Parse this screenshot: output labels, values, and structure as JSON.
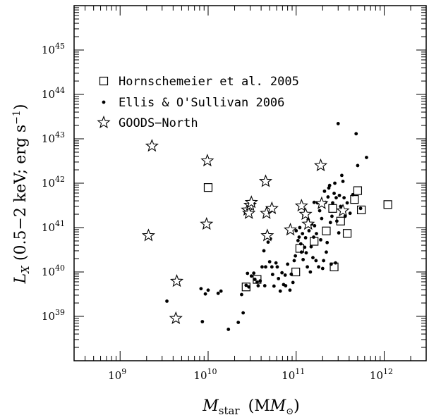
{
  "chart_data": {
    "type": "scatter",
    "xscale": "log",
    "yscale": "log",
    "xlim": [
      300000000.0,
      3000000000000.0
    ],
    "ylim": [
      1e+38,
      1e+46
    ],
    "xlabel": {
      "main": "M",
      "sub": "star",
      "unit": "(M",
      "unit_sub": "⊙",
      "unit_close": ")"
    },
    "ylabel": {
      "main": "L",
      "sub": "X",
      "text": " (0.5−2 keV; erg s",
      "sup": "−1",
      "close": ")"
    },
    "x_ticks": [
      {
        "value": 1000000000.0,
        "base": "10",
        "exp": "9"
      },
      {
        "value": 10000000000.0,
        "base": "10",
        "exp": "10"
      },
      {
        "value": 100000000000.0,
        "base": "10",
        "exp": "11"
      },
      {
        "value": 1000000000000.0,
        "base": "10",
        "exp": "12"
      }
    ],
    "y_ticks": [
      {
        "value": 1e+39,
        "base": "10",
        "exp": "39"
      },
      {
        "value": 1e+40,
        "base": "10",
        "exp": "40"
      },
      {
        "value": 1e+41,
        "base": "10",
        "exp": "41"
      },
      {
        "value": 1e+42,
        "base": "10",
        "exp": "42"
      },
      {
        "value": 1e+43,
        "base": "10",
        "exp": "43"
      },
      {
        "value": 1e+44,
        "base": "10",
        "exp": "44"
      },
      {
        "value": 1e+45,
        "base": "10",
        "exp": "45"
      }
    ],
    "legend": {
      "placement": "top-left",
      "entries": [
        {
          "label": "Hornschemeier et al. 2005",
          "marker": "open-square"
        },
        {
          "label": "Ellis & O'Sullivan 2006",
          "marker": "filled-circle"
        },
        {
          "label": "GOODS−North",
          "marker": "open-star"
        }
      ]
    },
    "series": [
      {
        "name": "Hornschemeier et al. 2005",
        "marker": "open-square",
        "points": [
          [
            10000000000.0,
            8e+41
          ],
          [
            27000000000.0,
            4.6e+39
          ],
          [
            36000000000.0,
            6.8e+39
          ],
          [
            99000000000.0,
            1e+40
          ],
          [
            110000000000.0,
            3.4e+40
          ],
          [
            160000000000.0,
            4.9e+40
          ],
          [
            220000000000.0,
            8.4e+40
          ],
          [
            260000000000.0,
            2.7e+41
          ],
          [
            270000000000.0,
            1.3e+40
          ],
          [
            320000000000.0,
            1.4e+41
          ],
          [
            380000000000.0,
            7.4e+40
          ],
          [
            460000000000.0,
            4.3e+41
          ],
          [
            500000000000.0,
            6.8e+41
          ],
          [
            550000000000.0,
            2.5e+41
          ],
          [
            1100000000000.0,
            3.3e+41
          ]
        ]
      },
      {
        "name": "Ellis & O'Sullivan 2006",
        "marker": "filled-circle",
        "points": [
          [
            3400000000.0,
            2.2e+39
          ],
          [
            8300000000.0,
            4.2e+39
          ],
          [
            8600000000.0,
            7.6e+38
          ],
          [
            9300000000.0,
            3.2e+39
          ],
          [
            10000000000.0,
            3.9e+39
          ],
          [
            13000000000.0,
            3.3e+39
          ],
          [
            14000000000.0,
            3.7e+39
          ],
          [
            17000000000.0,
            5.1e+38
          ],
          [
            22000000000.0,
            7.3e+38
          ],
          [
            24000000000.0,
            3.1e+39
          ],
          [
            25000000000.0,
            1.2e+39
          ],
          [
            27000000000.0,
            5e+39
          ],
          [
            28000000000.0,
            9.3e+39
          ],
          [
            29000000000.0,
            4.6e+39
          ],
          [
            31000000000.0,
            8.1e+39
          ],
          [
            33000000000.0,
            9.4e+39
          ],
          [
            34000000000.0,
            6.8e+39
          ],
          [
            36000000000.0,
            5.9e+39
          ],
          [
            37000000000.0,
            4.9e+39
          ],
          [
            39000000000.0,
            6.3e+39
          ],
          [
            41000000000.0,
            1.3e+40
          ],
          [
            43000000000.0,
            3e+40
          ],
          [
            44000000000.0,
            4.9e+39
          ],
          [
            45000000000.0,
            1.3e+40
          ],
          [
            46000000000.0,
            6.9e+40
          ],
          [
            48000000000.0,
            4.7e+40
          ],
          [
            50000000000.0,
            1.7e+40
          ],
          [
            51000000000.0,
            5.6e+40
          ],
          [
            53000000000.0,
            1.3e+40
          ],
          [
            54000000000.0,
            8.8e+39
          ],
          [
            56000000000.0,
            4.8e+39
          ],
          [
            59000000000.0,
            1.6e+40
          ],
          [
            61000000000.0,
            1.3e+40
          ],
          [
            63000000000.0,
            7.1e+39
          ],
          [
            66000000000.0,
            3.7e+39
          ],
          [
            69000000000.0,
            9.6e+39
          ],
          [
            72000000000.0,
            5.2e+39
          ],
          [
            75000000000.0,
            8.5e+39
          ],
          [
            76000000000.0,
            4.9e+39
          ],
          [
            80000000000.0,
            1.5e+40
          ],
          [
            85000000000.0,
            3.9e+39
          ],
          [
            88000000000.0,
            8.9e+39
          ],
          [
            92000000000.0,
            5.8e+39
          ],
          [
            95000000000.0,
            1.8e+40
          ],
          [
            98000000000.0,
            2.3e+40
          ],
          [
            100000000000.0,
            8.5e+40
          ],
          [
            105000000000.0,
            5.1e+40
          ],
          [
            108000000000.0,
            6.1e+40
          ],
          [
            110000000000.0,
            1e+41
          ],
          [
            113000000000.0,
            4.3e+40
          ],
          [
            115000000000.0,
            2.8e+40
          ],
          [
            118000000000.0,
            7.3e+40
          ],
          [
            120000000000.0,
            1.9e+40
          ],
          [
            122000000000.0,
            1.8e+41
          ],
          [
            125000000000.0,
            3.6e+40
          ],
          [
            128000000000.0,
            5.9e+40
          ],
          [
            130000000000.0,
            2.7e+40
          ],
          [
            134000000000.0,
            1.3e+40
          ],
          [
            137000000000.0,
            1.5e+41
          ],
          [
            140000000000.0,
            8.5e+40
          ],
          [
            145000000000.0,
            1e+40
          ],
          [
            148000000000.0,
            3.7e+40
          ],
          [
            150000000000.0,
            1.2e+41
          ],
          [
            155000000000.0,
            2.1e+40
          ],
          [
            158000000000.0,
            6.1e+40
          ],
          [
            160000000000.0,
            3.7e+41
          ],
          [
            162000000000.0,
            1.1e+41
          ],
          [
            168000000000.0,
            1.8e+40
          ],
          [
            170000000000.0,
            7.3e+40
          ],
          [
            175000000000.0,
            3.6e+41
          ],
          [
            180000000000.0,
            1.3e+40
          ],
          [
            185000000000.0,
            2.4e+41
          ],
          [
            190000000000.0,
            5.3e+40
          ],
          [
            195000000000.0,
            1.6e+41
          ],
          [
            200000000000.0,
            1.2e+40
          ],
          [
            205000000000.0,
            1.8e+40
          ],
          [
            210000000000.0,
            6.6e+41
          ],
          [
            215000000000.0,
            3.7e+41
          ],
          [
            220000000000.0,
            2.8e+40
          ],
          [
            225000000000.0,
            4.6e+40
          ],
          [
            230000000000.0,
            4.9e+41
          ],
          [
            235000000000.0,
            7.8e+41
          ],
          [
            240000000000.0,
            8.9e+41
          ],
          [
            245000000000.0,
            1.3e+41
          ],
          [
            250000000000.0,
            1.5e+40
          ],
          [
            255000000000.0,
            1.8e+41
          ],
          [
            260000000000.0,
            3.6e+41
          ],
          [
            270000000000.0,
            5.9e+41
          ],
          [
            275000000000.0,
            1e+42
          ],
          [
            280000000000.0,
            1.6e+40
          ],
          [
            285000000000.0,
            4.7e+41
          ],
          [
            290000000000.0,
            1.4e+41
          ],
          [
            300000000000.0,
            2.2e+43
          ],
          [
            305000000000.0,
            7.6e+40
          ],
          [
            310000000000.0,
            5.3e+41
          ],
          [
            320000000000.0,
            3e+41
          ],
          [
            330000000000.0,
            1.5e+42
          ],
          [
            340000000000.0,
            1.1e+42
          ],
          [
            350000000000.0,
            4.7e+41
          ],
          [
            360000000000.0,
            1.8e+41
          ],
          [
            380000000000.0,
            3.6e+41
          ],
          [
            410000000000.0,
            2.1e+41
          ],
          [
            440000000000.0,
            5.5e+41
          ],
          [
            480000000000.0,
            1.3e+43
          ],
          [
            500000000000.0,
            2.5e+42
          ],
          [
            540000000000.0,
            2.7e+41
          ],
          [
            630000000000.0,
            3.8e+42
          ]
        ]
      },
      {
        "name": "GOODS−North",
        "marker": "open-star",
        "points": [
          [
            2300000000.0,
            6.9e+42
          ],
          [
            2100000000.0,
            6.6e+40
          ],
          [
            4400000000.0,
            6.2e+39
          ],
          [
            4300000000.0,
            9e+38
          ],
          [
            9800000000.0,
            3.2e+42
          ],
          [
            9600000000.0,
            1.2e+41
          ],
          [
            28000000000.0,
            2.5e+41
          ],
          [
            29000000000.0,
            2.1e+41
          ],
          [
            30000000000.0,
            3.2e+41
          ],
          [
            31000000000.0,
            3.7e+41
          ],
          [
            45000000000.0,
            1.1e+42
          ],
          [
            46000000000.0,
            2.1e+41
          ],
          [
            47000000000.0,
            6.6e+40
          ],
          [
            53000000000.0,
            2.7e+41
          ],
          [
            86000000000.0,
            8.9e+40
          ],
          [
            115000000000.0,
            3.1e+41
          ],
          [
            128000000000.0,
            2e+41
          ],
          [
            137000000000.0,
            1.2e+41
          ],
          [
            190000000000.0,
            2.5e+42
          ],
          [
            195000000000.0,
            3.5e+41
          ],
          [
            340000000000.0,
            2.4e+41
          ]
        ]
      }
    ]
  }
}
